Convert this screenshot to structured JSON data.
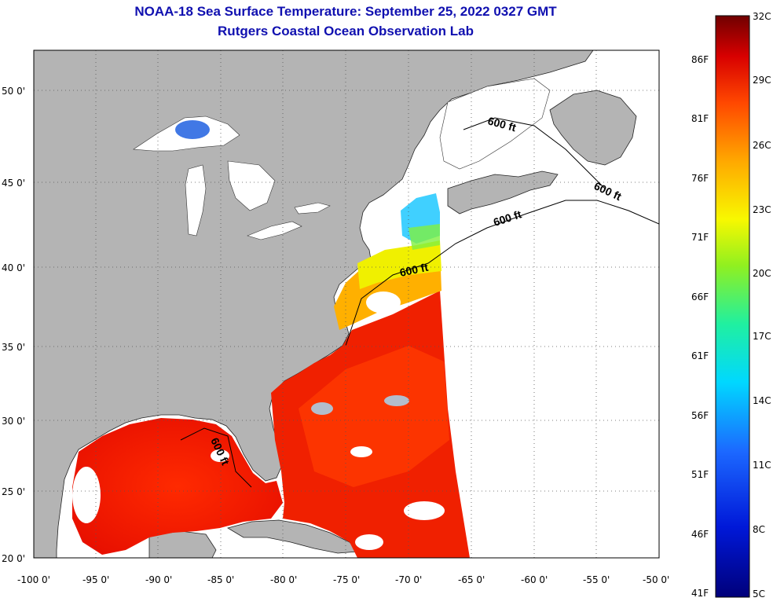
{
  "title": {
    "line1": "NOAA-18 Sea Surface Temperature:  September 25, 2022 0327 GMT",
    "line2": "Rutgers Coastal Ocean Observation Lab"
  },
  "axes": {
    "lon_ticks": [
      "-100 0'",
      "-95 0'",
      "-90 0'",
      "-85 0'",
      "-80 0'",
      "-75 0'",
      "-70 0'",
      "-65 0'",
      "-60 0'",
      "-55 0'",
      "-50 0'"
    ],
    "lat_ticks": [
      "50 0'",
      "45 0'",
      "40 0'",
      "35 0'",
      "30 0'",
      "25 0'",
      "20 0'"
    ]
  },
  "contour_label": "600 ft",
  "colorbar": {
    "celsius": [
      "32C",
      "29C",
      "26C",
      "23C",
      "20C",
      "17C",
      "14C",
      "11C",
      "8C",
      "5C"
    ],
    "fahrenheit": [
      "86F",
      "81F",
      "76F",
      "71F",
      "66F",
      "61F",
      "56F",
      "51F",
      "46F",
      "41F"
    ]
  },
  "colors": {
    "land": "#b4b4b4",
    "no_data": "#ffffff",
    "title": "#1010b0"
  }
}
